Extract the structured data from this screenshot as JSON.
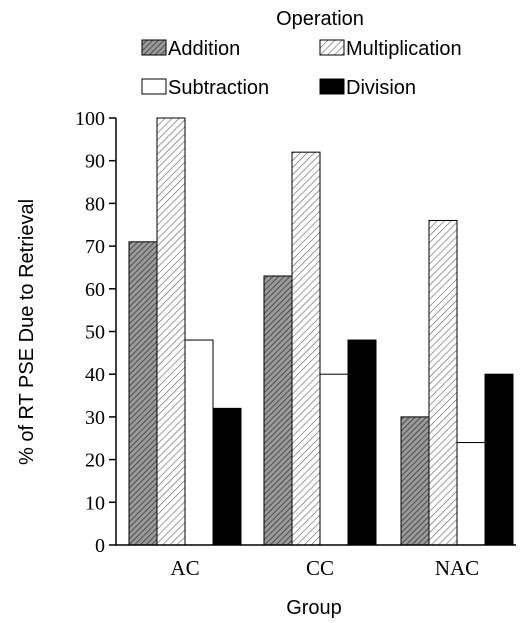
{
  "chart_data": {
    "type": "bar",
    "title": "",
    "legend": {
      "title": "Operation",
      "placement": "top"
    },
    "xlabel": "Group",
    "ylabel": "% of  RT PSE Due to Retrieval",
    "categories": [
      "AC",
      "CC",
      "NAC"
    ],
    "series": [
      {
        "name": "Addition",
        "values": [
          71,
          63,
          30
        ],
        "pattern": "dark-hatch",
        "color": "#8a8a8a"
      },
      {
        "name": "Multiplication",
        "values": [
          100,
          92,
          76
        ],
        "pattern": "light-hatch",
        "color": "#d8d8d8"
      },
      {
        "name": "Subtraction",
        "values": [
          48,
          40,
          24
        ],
        "pattern": "none",
        "color": "#ffffff"
      },
      {
        "name": "Division",
        "values": [
          32,
          48,
          40
        ],
        "pattern": "solid",
        "color": "#000000"
      }
    ],
    "ylim": [
      0,
      100
    ],
    "yticks": [
      "0",
      "10",
      "20",
      "30",
      "40",
      "50",
      "60",
      "70",
      "80",
      "90",
      "100"
    ],
    "grid": false
  }
}
